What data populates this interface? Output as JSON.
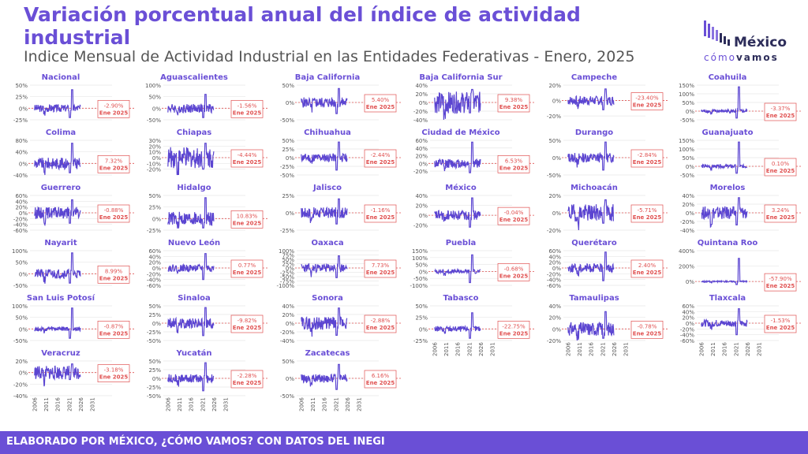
{
  "header": {
    "title": "Variación porcentual anual del índice de actividad industrial",
    "subtitle": "Indice Mensual de Actividad Industrial en las Entidades Federativas - Enero, 2025"
  },
  "logo": {
    "main": "México",
    "sub_a": "cómo",
    "sub_b": "vamos"
  },
  "footer": {
    "text": "ELABORADO POR MÉXICO, ¿CÓMO VAMOS? CON DATOS DEL INEGI"
  },
  "colors": {
    "accent": "#6a4fd6",
    "line": "#5b45d1",
    "ref": "#e05050"
  },
  "chart_data": {
    "type": "line",
    "x_ticks": [
      "2006",
      "2011",
      "2016",
      "2021",
      "2026",
      "2031"
    ],
    "x_range": [
      2003,
      2034
    ],
    "last_point": "Ene 2025",
    "panels": [
      {
        "name": "Nacional",
        "ylim": [
          -25,
          50
        ],
        "yticks": [
          "50%",
          "25%",
          "0%",
          "-25%"
        ],
        "ytick_values": [
          50,
          25,
          0,
          -25
        ],
        "amp": 8,
        "spike": 40,
        "last": "-2.90%"
      },
      {
        "name": "Aguascalientes",
        "ylim": [
          -50,
          100
        ],
        "yticks": [
          "100%",
          "50%",
          "0%",
          "-50%"
        ],
        "ytick_values": [
          100,
          50,
          0,
          -50
        ],
        "amp": 20,
        "spike": 60,
        "last": "-1.56%"
      },
      {
        "name": "Baja California",
        "ylim": [
          -50,
          50
        ],
        "yticks": [
          "50%",
          "0%",
          "-50%"
        ],
        "ytick_values": [
          50,
          0,
          -50
        ],
        "amp": 15,
        "spike": 40,
        "last": "5.40%"
      },
      {
        "name": "Baja California Sur",
        "ylim": [
          -40,
          40
        ],
        "yticks": [
          "40%",
          "20%",
          "0%",
          "-20%",
          "-40%"
        ],
        "ytick_values": [
          40,
          20,
          0,
          -20,
          -40
        ],
        "amp": 25,
        "spike": 30,
        "last": "9.38%"
      },
      {
        "name": "Campeche",
        "ylim": [
          -25,
          20
        ],
        "yticks": [
          "20%",
          "0%",
          "-20%"
        ],
        "ytick_values": [
          20,
          0,
          -20
        ],
        "amp": 6,
        "spike": 15,
        "last": "-23.40%"
      },
      {
        "name": "Coahuila",
        "ylim": [
          -50,
          150
        ],
        "yticks": [
          "150%",
          "100%",
          "50%",
          "0%",
          "-50%"
        ],
        "ytick_values": [
          150,
          100,
          50,
          0,
          -50
        ],
        "amp": 10,
        "spike": 140,
        "last": "-3.37%"
      },
      {
        "name": "Colima",
        "ylim": [
          -40,
          80
        ],
        "yticks": [
          "80%",
          "40%",
          "0%",
          "-40%"
        ],
        "ytick_values": [
          80,
          40,
          0,
          -40
        ],
        "amp": 20,
        "spike": 70,
        "last": "7.32%"
      },
      {
        "name": "Chiapas",
        "ylim": [
          -30,
          30
        ],
        "yticks": [
          "30%",
          "20%",
          "10%",
          "0%",
          "-10%",
          "-20%"
        ],
        "ytick_values": [
          30,
          20,
          10,
          0,
          -10,
          -20
        ],
        "amp": 18,
        "spike": 25,
        "last": "-4.44%"
      },
      {
        "name": "Chihuahua",
        "ylim": [
          -50,
          50
        ],
        "yticks": [
          "50%",
          "25%",
          "0%",
          "-25%",
          "-50%"
        ],
        "ytick_values": [
          50,
          25,
          0,
          -25,
          -50
        ],
        "amp": 12,
        "spike": 45,
        "last": "-2.44%"
      },
      {
        "name": "Ciudad de México",
        "ylim": [
          -30,
          60
        ],
        "yticks": [
          "60%",
          "40%",
          "20%",
          "0%",
          "-20%"
        ],
        "ytick_values": [
          60,
          40,
          20,
          0,
          -20
        ],
        "amp": 12,
        "spike": 55,
        "last": "6.53%"
      },
      {
        "name": "Durango",
        "ylim": [
          -50,
          50
        ],
        "yticks": [
          "50%",
          "0%",
          "-50%"
        ],
        "ytick_values": [
          50,
          0,
          -50
        ],
        "amp": 14,
        "spike": 45,
        "last": "-2.84%"
      },
      {
        "name": "Guanajuato",
        "ylim": [
          -50,
          150
        ],
        "yticks": [
          "150%",
          "100%",
          "50%",
          "0%",
          "-50%"
        ],
        "ytick_values": [
          150,
          100,
          50,
          0,
          -50
        ],
        "amp": 10,
        "spike": 140,
        "last": "0.10%"
      },
      {
        "name": "Guerrero",
        "ylim": [
          -60,
          60
        ],
        "yticks": [
          "60%",
          "40%",
          "20%",
          "0%",
          "-20%",
          "-40%",
          "-60%"
        ],
        "ytick_values": [
          60,
          40,
          20,
          0,
          -20,
          -40,
          -60
        ],
        "amp": 20,
        "spike": 45,
        "last": "-0.88%"
      },
      {
        "name": "Hidalgo",
        "ylim": [
          -25,
          50
        ],
        "yticks": [
          "50%",
          "25%",
          "0%",
          "-25%"
        ],
        "ytick_values": [
          50,
          25,
          0,
          -25
        ],
        "amp": 15,
        "spike": 45,
        "last": "10.83%"
      },
      {
        "name": "Jalisco",
        "ylim": [
          -25,
          25
        ],
        "yticks": [
          "25%",
          "0%",
          "-25%"
        ],
        "ytick_values": [
          25,
          0,
          -25
        ],
        "amp": 8,
        "spike": 20,
        "last": "-1.16%"
      },
      {
        "name": "México",
        "ylim": [
          -30,
          40
        ],
        "yticks": [
          "40%",
          "20%",
          "0%",
          "-20%"
        ],
        "ytick_values": [
          40,
          20,
          0,
          -20
        ],
        "amp": 10,
        "spike": 35,
        "last": "-0.04%"
      },
      {
        "name": "Michoacán",
        "ylim": [
          -20,
          20
        ],
        "yticks": [
          "20%",
          "0%",
          "-20%"
        ],
        "ytick_values": [
          20,
          0,
          -20
        ],
        "amp": 10,
        "spike": 15,
        "last": "-5.71%"
      },
      {
        "name": "Morelos",
        "ylim": [
          -40,
          40
        ],
        "yticks": [
          "40%",
          "20%",
          "0%",
          "-20%",
          "-40%"
        ],
        "ytick_values": [
          40,
          20,
          0,
          -20,
          -40
        ],
        "amp": 15,
        "spike": 35,
        "last": "3.24%"
      },
      {
        "name": "Nayarit",
        "ylim": [
          -50,
          100
        ],
        "yticks": [
          "100%",
          "50%",
          "0%",
          "-50%"
        ],
        "ytick_values": [
          100,
          50,
          0,
          -50
        ],
        "amp": 20,
        "spike": 90,
        "last": "8.99%"
      },
      {
        "name": "Nuevo León",
        "ylim": [
          -60,
          60
        ],
        "yticks": [
          "60%",
          "40%",
          "20%",
          "0%",
          "-20%",
          "-40%",
          "-60%"
        ],
        "ytick_values": [
          60,
          40,
          20,
          0,
          -20,
          -40,
          -60
        ],
        "amp": 12,
        "spike": 50,
        "last": "0.77%"
      },
      {
        "name": "Oaxaca",
        "ylim": [
          -100,
          100
        ],
        "yticks": [
          "100%",
          "75%",
          "50%",
          "25%",
          "0%",
          "-25%",
          "-50%",
          "-75%",
          "-100%"
        ],
        "ytick_values": [
          100,
          75,
          50,
          25,
          0,
          -25,
          -50,
          -75,
          -100
        ],
        "amp": 25,
        "spike": 70,
        "last": "7.73%"
      },
      {
        "name": "Puebla",
        "ylim": [
          -100,
          150
        ],
        "yticks": [
          "150%",
          "100%",
          "50%",
          "0%",
          "-50%",
          "-100%"
        ],
        "ytick_values": [
          150,
          100,
          50,
          0,
          -50,
          -100
        ],
        "amp": 15,
        "spike": 120,
        "last": "-0.68%"
      },
      {
        "name": "Querétaro",
        "ylim": [
          -60,
          60
        ],
        "yticks": [
          "60%",
          "40%",
          "20%",
          "0%",
          "-20%",
          "-40%",
          "-60%"
        ],
        "ytick_values": [
          60,
          40,
          20,
          0,
          -20,
          -40,
          -60
        ],
        "amp": 15,
        "spike": 55,
        "last": "2.40%"
      },
      {
        "name": "Quintana Roo",
        "ylim": [
          -50,
          400
        ],
        "yticks": [
          "400%",
          "200%",
          "0%"
        ],
        "ytick_values": [
          400,
          200,
          0
        ],
        "amp": 10,
        "spike": 300,
        "last": "-57.90%"
      },
      {
        "name": "San Luis Potosí",
        "ylim": [
          -50,
          100
        ],
        "yticks": [
          "100%",
          "50%",
          "0%",
          "-50%"
        ],
        "ytick_values": [
          100,
          50,
          0,
          -50
        ],
        "amp": 10,
        "spike": 90,
        "last": "-0.87%"
      },
      {
        "name": "Sinaloa",
        "ylim": [
          -50,
          50
        ],
        "yticks": [
          "50%",
          "25%",
          "0%",
          "-25%",
          "-50%"
        ],
        "ytick_values": [
          50,
          25,
          0,
          -25,
          -50
        ],
        "amp": 15,
        "spike": 45,
        "last": "-9.82%"
      },
      {
        "name": "Sonora",
        "ylim": [
          -40,
          40
        ],
        "yticks": [
          "40%",
          "20%",
          "0%",
          "-20%",
          "-40%"
        ],
        "ytick_values": [
          40,
          20,
          0,
          -20,
          -40
        ],
        "amp": 15,
        "spike": 35,
        "last": "-2.88%"
      },
      {
        "name": "Tabasco",
        "ylim": [
          -25,
          50
        ],
        "yticks": [
          "50%",
          "25%",
          "0%",
          "-25%"
        ],
        "ytick_values": [
          50,
          25,
          0,
          -25
        ],
        "amp": 6,
        "spike": 35,
        "last": "-22.75%"
      },
      {
        "name": "Tamaulipas",
        "ylim": [
          -20,
          40
        ],
        "yticks": [
          "40%",
          "20%",
          "0%",
          "-20%"
        ],
        "ytick_values": [
          40,
          20,
          0,
          -20
        ],
        "amp": 12,
        "spike": 30,
        "last": "-0.78%"
      },
      {
        "name": "Tlaxcala",
        "ylim": [
          -60,
          60
        ],
        "yticks": [
          "60%",
          "40%",
          "20%",
          "0%",
          "-20%",
          "-40%",
          "-60%"
        ],
        "ytick_values": [
          60,
          40,
          20,
          0,
          -20,
          -40,
          -60
        ],
        "amp": 12,
        "spike": 50,
        "last": "-1.53%"
      },
      {
        "name": "Veracruz",
        "ylim": [
          -40,
          20
        ],
        "yticks": [
          "20%",
          "0%",
          "-20%",
          "-40%"
        ],
        "ytick_values": [
          20,
          0,
          -20,
          -40
        ],
        "amp": 12,
        "spike": 15,
        "last": "-3.18%"
      },
      {
        "name": "Yucatán",
        "ylim": [
          -50,
          50
        ],
        "yticks": [
          "50%",
          "25%",
          "0%",
          "-25%",
          "-50%"
        ],
        "ytick_values": [
          50,
          25,
          0,
          -25,
          -50
        ],
        "amp": 12,
        "spike": 45,
        "last": "-2.28%"
      },
      {
        "name": "Zacatecas",
        "ylim": [
          -50,
          50
        ],
        "yticks": [
          "50%",
          "0%",
          "-50%"
        ],
        "ytick_values": [
          50,
          0,
          -50
        ],
        "amp": 12,
        "spike": 40,
        "last": "6.16%"
      }
    ]
  }
}
